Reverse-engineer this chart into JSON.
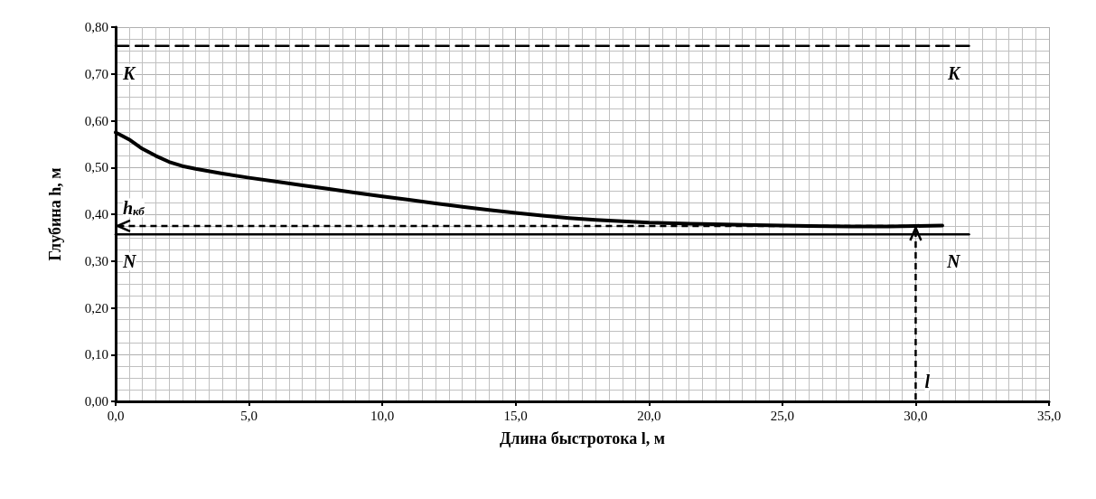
{
  "chart_data": {
    "type": "line",
    "xlabel": "Длина быстротока l, м",
    "ylabel": "Глубина h, м",
    "xlim": [
      0,
      35
    ],
    "xticks": [
      {
        "value": 0,
        "label": "0,0"
      },
      {
        "value": 5,
        "label": "5,0"
      },
      {
        "value": 10,
        "label": "10,0"
      },
      {
        "value": 15,
        "label": "15,0"
      },
      {
        "value": 20,
        "label": "20,0"
      },
      {
        "value": 25,
        "label": "25,0"
      },
      {
        "value": 30,
        "label": "30,0"
      },
      {
        "value": 35,
        "label": "35,0"
      }
    ],
    "ylim": [
      0,
      0.8
    ],
    "yticks": [
      {
        "value": 0,
        "label": "0,00"
      },
      {
        "value": 0.1,
        "label": "0,10"
      },
      {
        "value": 0.2,
        "label": "0,20"
      },
      {
        "value": 0.3,
        "label": "0,30"
      },
      {
        "value": 0.4,
        "label": "0,40"
      },
      {
        "value": 0.5,
        "label": "0,50"
      },
      {
        "value": 0.6,
        "label": "0,60"
      },
      {
        "value": 0.7,
        "label": "0,70"
      },
      {
        "value": 0.8,
        "label": "0,80"
      }
    ],
    "grid": true,
    "marker": "none",
    "series": [
      {
        "color": "#000000",
        "line_style": "solid",
        "x": [
          0,
          0.5,
          1,
          1.5,
          2,
          2.5,
          3,
          4,
          5,
          6,
          7,
          8,
          9,
          10,
          11,
          12,
          13,
          14,
          15,
          16,
          17,
          18,
          19,
          20,
          22,
          24,
          26,
          27.5,
          29,
          30,
          31
        ],
        "values": [
          0.575,
          0.56,
          0.54,
          0.525,
          0.512,
          0.503,
          0.497,
          0.487,
          0.478,
          0.47,
          0.462,
          0.454,
          0.446,
          0.438,
          0.431,
          0.423,
          0.416,
          0.409,
          0.403,
          0.397,
          0.392,
          0.388,
          0.385,
          0.382,
          0.379,
          0.377,
          0.375,
          0.374,
          0.374,
          0.375,
          0.376
        ]
      },
      {
        "color": "#000000",
        "line_style": "dashed",
        "x": [
          0,
          32
        ],
        "values": [
          0.76,
          0.76
        ]
      },
      {
        "color": "#000000",
        "line_style": "solid",
        "x": [
          0,
          32
        ],
        "values": [
          0.357,
          0.357
        ]
      }
    ],
    "annotations": [
      "K",
      "K",
      "N",
      "N",
      {
        "text": "h$_{кб}$",
        "x": 30,
        "y": 0.375
      },
      {
        "text": "l",
        "x": 30,
        "y": 0.375
      }
    ]
  }
}
